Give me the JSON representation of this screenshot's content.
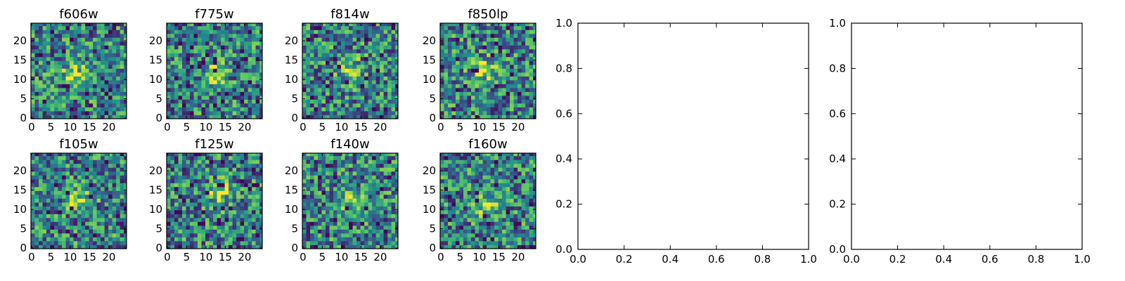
{
  "chart_data": [
    {
      "type": "heatmap",
      "title": "f606w",
      "colormap": "viridis",
      "grid_size": 25,
      "xticks": [
        "0",
        "5",
        "10",
        "15",
        "20"
      ],
      "yticks": [
        "0",
        "5",
        "10",
        "15",
        "20"
      ],
      "center_source": [
        11,
        11
      ],
      "seed": 11
    },
    {
      "type": "heatmap",
      "title": "f775w",
      "colormap": "viridis",
      "grid_size": 25,
      "xticks": [
        "0",
        "5",
        "10",
        "15",
        "20"
      ],
      "yticks": [
        "0",
        "5",
        "10",
        "15",
        "20"
      ],
      "center_source": [
        12,
        11
      ],
      "seed": 23
    },
    {
      "type": "heatmap",
      "title": "f814w",
      "colormap": "viridis",
      "grid_size": 25,
      "xticks": [
        "0",
        "5",
        "10",
        "15",
        "20"
      ],
      "yticks": [
        "0",
        "5",
        "10",
        "15",
        "20"
      ],
      "center_source": [
        12,
        12
      ],
      "seed": 37
    },
    {
      "type": "heatmap",
      "title": "f850lp",
      "colormap": "viridis",
      "grid_size": 25,
      "xticks": [
        "0",
        "5",
        "10",
        "15",
        "20"
      ],
      "yticks": [
        "0",
        "5",
        "10",
        "15",
        "20"
      ],
      "center_source": [
        11,
        12
      ],
      "seed": 41
    },
    {
      "type": "heatmap",
      "title": "f105w",
      "colormap": "viridis",
      "grid_size": 25,
      "xticks": [
        "0",
        "5",
        "10",
        "15",
        "20"
      ],
      "yticks": [
        "0",
        "5",
        "10",
        "15",
        "20"
      ],
      "center_source": [
        12,
        12
      ],
      "seed": 53
    },
    {
      "type": "heatmap",
      "title": "f125w",
      "colormap": "viridis",
      "grid_size": 25,
      "xticks": [
        "0",
        "5",
        "10",
        "15",
        "20"
      ],
      "yticks": [
        "0",
        "5",
        "10",
        "15",
        "20"
      ],
      "center_source": [
        13,
        14
      ],
      "seed": 67
    },
    {
      "type": "heatmap",
      "title": "f140w",
      "colormap": "viridis",
      "grid_size": 25,
      "xticks": [
        "0",
        "5",
        "10",
        "15",
        "20"
      ],
      "yticks": [
        "0",
        "5",
        "10",
        "15",
        "20"
      ],
      "center_source": [
        12,
        12
      ],
      "seed": 79
    },
    {
      "type": "heatmap",
      "title": "f160w",
      "colormap": "viridis",
      "grid_size": 25,
      "xticks": [
        "0",
        "5",
        "10",
        "15",
        "20"
      ],
      "yticks": [
        "0",
        "5",
        "10",
        "15",
        "20"
      ],
      "center_source": [
        11,
        11
      ],
      "seed": 83
    },
    {
      "type": "scatter",
      "title": "",
      "series": [],
      "xlim": [
        0.0,
        1.0
      ],
      "ylim": [
        0.0,
        1.0
      ],
      "xticks": [
        "0.0",
        "0.2",
        "0.4",
        "0.6",
        "0.8",
        "1.0"
      ],
      "yticks": [
        "0.0",
        "0.2",
        "0.4",
        "0.6",
        "0.8",
        "1.0"
      ]
    },
    {
      "type": "scatter",
      "title": "",
      "series": [],
      "xlim": [
        0.0,
        1.0
      ],
      "ylim": [
        0.0,
        1.0
      ],
      "xticks": [
        "0.0",
        "0.2",
        "0.4",
        "0.6",
        "0.8",
        "1.0"
      ],
      "yticks": [
        "0.0",
        "0.2",
        "0.4",
        "0.6",
        "0.8",
        "1.0"
      ]
    }
  ],
  "colors": {
    "viridis": [
      "#440154",
      "#3b528b",
      "#21908c",
      "#5dc963",
      "#fde725"
    ],
    "axes": "#000000",
    "background": "#ffffff"
  }
}
